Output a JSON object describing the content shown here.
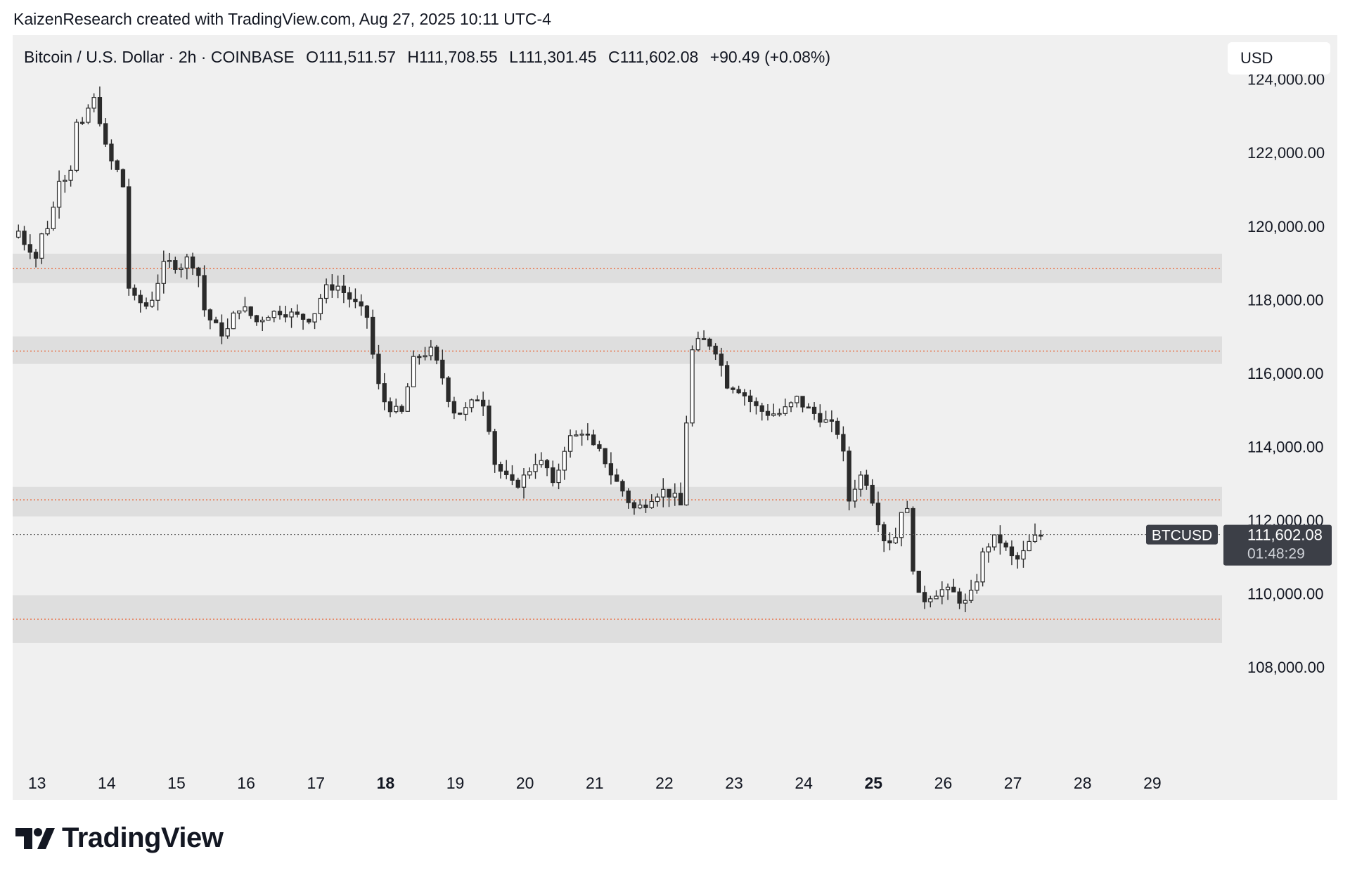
{
  "header": {
    "credit": "KaizenResearch created with TradingView.com, Aug 27, 2025 10:11 UTC-4"
  },
  "legend": {
    "symbol": "Bitcoin / U.S. Dollar · 2h · COINBASE",
    "open": "O111,511.57",
    "high": "H111,708.55",
    "low": "L111,301.45",
    "close": "C111,602.08",
    "change": "+90.49 (+0.08%)"
  },
  "currency": "USD",
  "last_price": {
    "symbol_label": "BTCUSD",
    "price": "111,602.08",
    "countdown": "01:48:29"
  },
  "brand": {
    "name": "TradingView"
  },
  "colors": {
    "background": "#f0f0f0",
    "candle_body": "#2b2b2b",
    "candle_up_fill": "#ffffff",
    "zone_fill": "#dedede",
    "level_line": "#e8734a",
    "price_tag": "#3c3f47"
  },
  "chart_data": {
    "type": "candlestick",
    "symbol": "BTCUSD",
    "timeframe": "2h",
    "x_labels": [
      {
        "day": 13,
        "label": "13",
        "bold": false
      },
      {
        "day": 14,
        "label": "14",
        "bold": false
      },
      {
        "day": 15,
        "label": "15",
        "bold": false
      },
      {
        "day": 16,
        "label": "16",
        "bold": false
      },
      {
        "day": 17,
        "label": "17",
        "bold": false
      },
      {
        "day": 18,
        "label": "18",
        "bold": true
      },
      {
        "day": 19,
        "label": "19",
        "bold": false
      },
      {
        "day": 20,
        "label": "20",
        "bold": false
      },
      {
        "day": 21,
        "label": "21",
        "bold": false
      },
      {
        "day": 22,
        "label": "22",
        "bold": false
      },
      {
        "day": 23,
        "label": "23",
        "bold": false
      },
      {
        "day": 24,
        "label": "24",
        "bold": false
      },
      {
        "day": 25,
        "label": "25",
        "bold": true
      },
      {
        "day": 26,
        "label": "26",
        "bold": false
      },
      {
        "day": 27,
        "label": "27",
        "bold": false
      },
      {
        "day": 28,
        "label": "28",
        "bold": false
      },
      {
        "day": 29,
        "label": "29",
        "bold": false
      }
    ],
    "y_ticks": [
      {
        "value": 124000,
        "label": "124,000.00"
      },
      {
        "value": 122000,
        "label": "122,000.00"
      },
      {
        "value": 120000,
        "label": "120,000.00"
      },
      {
        "value": 118000,
        "label": "118,000.00"
      },
      {
        "value": 116000,
        "label": "116,000.00"
      },
      {
        "value": 114000,
        "label": "114,000.00"
      },
      {
        "value": 112000,
        "label": "112,000.00"
      },
      {
        "value": 110000,
        "label": "110,000.00"
      },
      {
        "value": 108000,
        "label": "108,000.00"
      }
    ],
    "ylim": [
      105300,
      125200
    ],
    "xlim": [
      12.65,
      30.0
    ],
    "last_price": 111602.08,
    "zones": [
      {
        "low": 118450,
        "high": 119250,
        "level": 118850
      },
      {
        "low": 116250,
        "high": 117000,
        "level": 116600
      },
      {
        "low": 112100,
        "high": 112900,
        "level": 112550
      },
      {
        "low": 108650,
        "high": 109950,
        "level": 109300
      }
    ],
    "path": [
      {
        "day": 12.65,
        "price": 119700
      },
      {
        "day": 12.7,
        "price": 120000
      },
      {
        "day": 12.8,
        "price": 119600
      },
      {
        "day": 12.9,
        "price": 119400
      },
      {
        "day": 13.0,
        "price": 119100
      },
      {
        "day": 13.05,
        "price": 119700
      },
      {
        "day": 13.15,
        "price": 120000
      },
      {
        "day": 13.25,
        "price": 120600
      },
      {
        "day": 13.35,
        "price": 121700
      },
      {
        "day": 13.45,
        "price": 121000
      },
      {
        "day": 13.55,
        "price": 122800
      },
      {
        "day": 13.65,
        "price": 122700
      },
      {
        "day": 13.75,
        "price": 123300
      },
      {
        "day": 13.85,
        "price": 123500
      },
      {
        "day": 13.95,
        "price": 122300
      },
      {
        "day": 14.05,
        "price": 121800
      },
      {
        "day": 14.15,
        "price": 121500
      },
      {
        "day": 14.25,
        "price": 121000
      },
      {
        "day": 14.32,
        "price": 118200
      },
      {
        "day": 14.4,
        "price": 118000
      },
      {
        "day": 14.5,
        "price": 117900
      },
      {
        "day": 14.6,
        "price": 117800
      },
      {
        "day": 14.7,
        "price": 118300
      },
      {
        "day": 14.8,
        "price": 118900
      },
      {
        "day": 14.9,
        "price": 119000
      },
      {
        "day": 15.05,
        "price": 118900
      },
      {
        "day": 15.15,
        "price": 119100
      },
      {
        "day": 15.3,
        "price": 118900
      },
      {
        "day": 15.38,
        "price": 117800
      },
      {
        "day": 15.5,
        "price": 117400
      },
      {
        "day": 15.6,
        "price": 117200
      },
      {
        "day": 15.7,
        "price": 117000
      },
      {
        "day": 15.8,
        "price": 117500
      },
      {
        "day": 15.9,
        "price": 117800
      },
      {
        "day": 16.0,
        "price": 117700
      },
      {
        "day": 16.15,
        "price": 117400
      },
      {
        "day": 16.3,
        "price": 117600
      },
      {
        "day": 16.5,
        "price": 117700
      },
      {
        "day": 16.65,
        "price": 117600
      },
      {
        "day": 16.8,
        "price": 117500
      },
      {
        "day": 16.95,
        "price": 117500
      },
      {
        "day": 17.05,
        "price": 118000
      },
      {
        "day": 17.15,
        "price": 118300
      },
      {
        "day": 17.3,
        "price": 118400
      },
      {
        "day": 17.45,
        "price": 118100
      },
      {
        "day": 17.6,
        "price": 117800
      },
      {
        "day": 17.75,
        "price": 117500
      },
      {
        "day": 17.85,
        "price": 116000
      },
      {
        "day": 17.95,
        "price": 115300
      },
      {
        "day": 18.1,
        "price": 115000
      },
      {
        "day": 18.25,
        "price": 114900
      },
      {
        "day": 18.38,
        "price": 116300
      },
      {
        "day": 18.5,
        "price": 116500
      },
      {
        "day": 18.65,
        "price": 116600
      },
      {
        "day": 18.8,
        "price": 116000
      },
      {
        "day": 18.95,
        "price": 115000
      },
      {
        "day": 19.1,
        "price": 114900
      },
      {
        "day": 19.25,
        "price": 115200
      },
      {
        "day": 19.35,
        "price": 115400
      },
      {
        "day": 19.45,
        "price": 115000
      },
      {
        "day": 19.55,
        "price": 113600
      },
      {
        "day": 19.7,
        "price": 113200
      },
      {
        "day": 19.85,
        "price": 112900
      },
      {
        "day": 20.0,
        "price": 113200
      },
      {
        "day": 20.15,
        "price": 113600
      },
      {
        "day": 20.3,
        "price": 113500
      },
      {
        "day": 20.4,
        "price": 112900
      },
      {
        "day": 20.5,
        "price": 113500
      },
      {
        "day": 20.6,
        "price": 114200
      },
      {
        "day": 20.75,
        "price": 114300
      },
      {
        "day": 20.85,
        "price": 114500
      },
      {
        "day": 20.95,
        "price": 114000
      },
      {
        "day": 21.1,
        "price": 113800
      },
      {
        "day": 21.25,
        "price": 113200
      },
      {
        "day": 21.4,
        "price": 112800
      },
      {
        "day": 21.55,
        "price": 112300
      },
      {
        "day": 21.7,
        "price": 112400
      },
      {
        "day": 21.85,
        "price": 112700
      },
      {
        "day": 22.0,
        "price": 112800
      },
      {
        "day": 22.15,
        "price": 112600
      },
      {
        "day": 22.27,
        "price": 112300
      },
      {
        "day": 22.35,
        "price": 116400
      },
      {
        "day": 22.45,
        "price": 116800
      },
      {
        "day": 22.6,
        "price": 116900
      },
      {
        "day": 22.75,
        "price": 116600
      },
      {
        "day": 22.9,
        "price": 115700
      },
      {
        "day": 23.05,
        "price": 115600
      },
      {
        "day": 23.2,
        "price": 115300
      },
      {
        "day": 23.35,
        "price": 115000
      },
      {
        "day": 23.5,
        "price": 114900
      },
      {
        "day": 23.65,
        "price": 114900
      },
      {
        "day": 23.8,
        "price": 115100
      },
      {
        "day": 23.9,
        "price": 115300
      },
      {
        "day": 24.0,
        "price": 115100
      },
      {
        "day": 24.15,
        "price": 114900
      },
      {
        "day": 24.3,
        "price": 114700
      },
      {
        "day": 24.45,
        "price": 114500
      },
      {
        "day": 24.55,
        "price": 114200
      },
      {
        "day": 24.62,
        "price": 112400
      },
      {
        "day": 24.75,
        "price": 113000
      },
      {
        "day": 24.85,
        "price": 113300
      },
      {
        "day": 24.95,
        "price": 112800
      },
      {
        "day": 25.05,
        "price": 112100
      },
      {
        "day": 25.15,
        "price": 111500
      },
      {
        "day": 25.3,
        "price": 111400
      },
      {
        "day": 25.4,
        "price": 112300
      },
      {
        "day": 25.5,
        "price": 112200
      },
      {
        "day": 25.6,
        "price": 110000
      },
      {
        "day": 25.7,
        "price": 109800
      },
      {
        "day": 25.85,
        "price": 110000
      },
      {
        "day": 26.0,
        "price": 110100
      },
      {
        "day": 26.15,
        "price": 110000
      },
      {
        "day": 26.3,
        "price": 109700
      },
      {
        "day": 26.45,
        "price": 110100
      },
      {
        "day": 26.55,
        "price": 111000
      },
      {
        "day": 26.7,
        "price": 111500
      },
      {
        "day": 26.85,
        "price": 111400
      },
      {
        "day": 26.95,
        "price": 111000
      },
      {
        "day": 27.1,
        "price": 110900
      },
      {
        "day": 27.2,
        "price": 111300
      },
      {
        "day": 27.3,
        "price": 111500
      },
      {
        "day": 27.42,
        "price": 111602
      }
    ]
  }
}
